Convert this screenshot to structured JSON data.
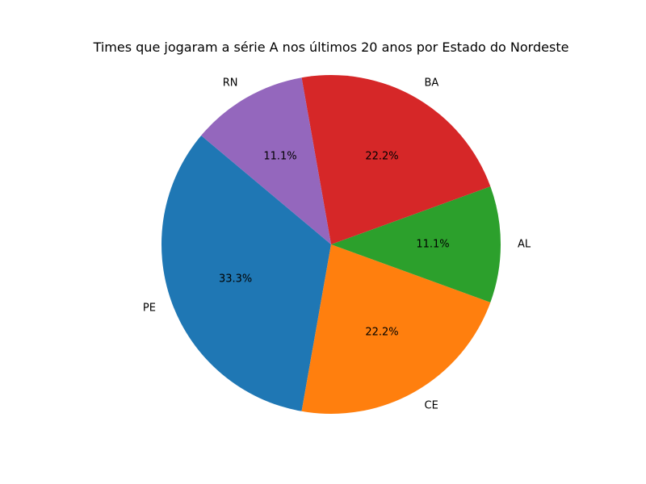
{
  "chart_data": {
    "type": "pie",
    "title": "Times que jogaram a série A nos últimos 20 anos por Estado do Nordeste",
    "start_angle_deg": 140,
    "direction": "counterclockwise",
    "slices": [
      {
        "label": "PE",
        "value": 33.3,
        "pct_label": "33.3%",
        "color": "#1f77b4"
      },
      {
        "label": "CE",
        "value": 22.2,
        "pct_label": "22.2%",
        "color": "#ff7f0e"
      },
      {
        "label": "AL",
        "value": 11.1,
        "pct_label": "11.1%",
        "color": "#2ca02c"
      },
      {
        "label": "BA",
        "value": 22.2,
        "pct_label": "22.2%",
        "color": "#d62728"
      },
      {
        "label": "RN",
        "value": 11.1,
        "pct_label": "11.1%",
        "color": "#9467bd"
      }
    ]
  }
}
